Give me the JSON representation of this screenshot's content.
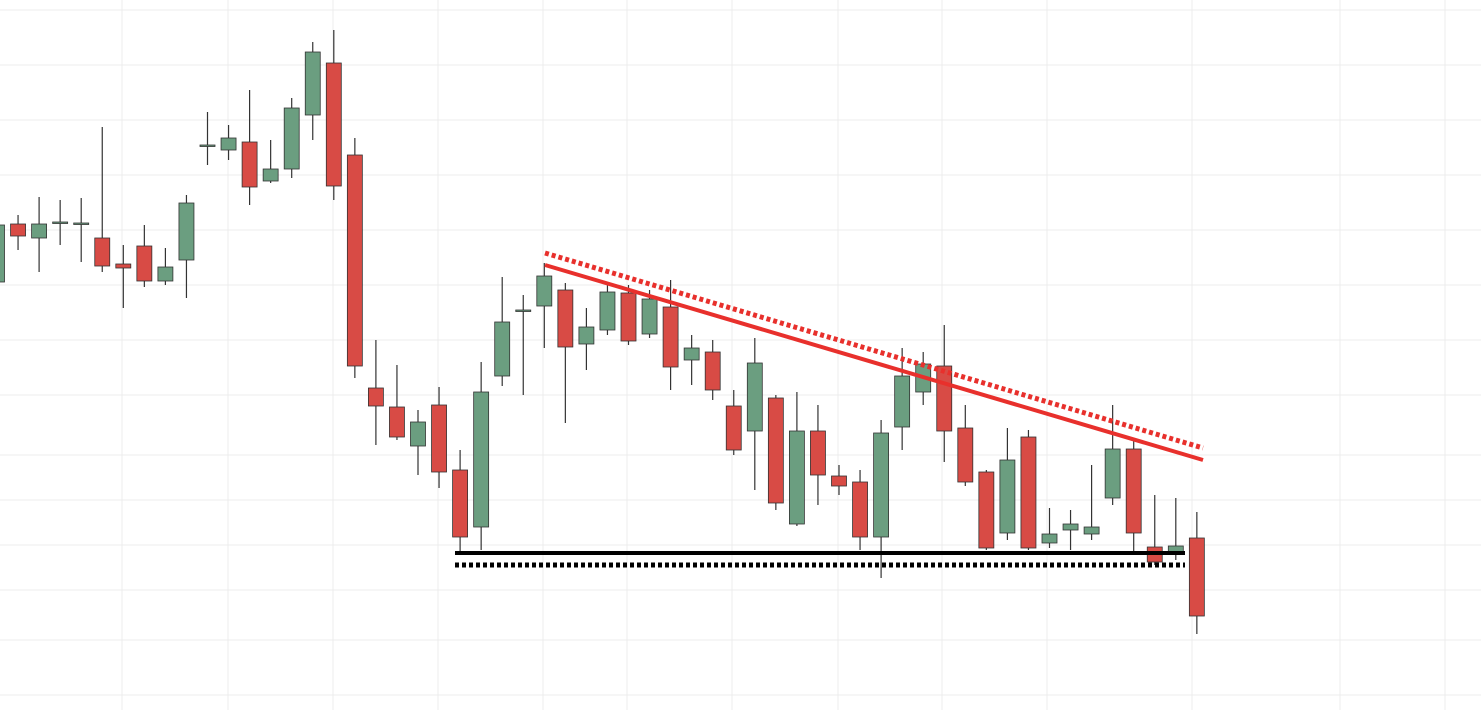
{
  "chart_data": {
    "type": "candlestick",
    "ylim": [
      0,
      710
    ],
    "up_color": "#6b9e80",
    "down_color": "#d84b45",
    "open": [
      428,
      486,
      472,
      488,
      487,
      472,
      446,
      464,
      429,
      450,
      565,
      560,
      568,
      529,
      541,
      595,
      647,
      555,
      322,
      303,
      264,
      305,
      240,
      183,
      334,
      400,
      404,
      420,
      366,
      380,
      417,
      376,
      403,
      350,
      358,
      304,
      279,
      312,
      186,
      279,
      234,
      228,
      173,
      283,
      318,
      344,
      282,
      238,
      177,
      273,
      167,
      180,
      176,
      212,
      261,
      163,
      158,
      172
    ],
    "high": [
      495,
      495,
      513,
      510,
      512,
      583,
      465,
      485,
      462,
      515,
      598,
      585,
      620,
      570,
      612,
      668,
      680,
      572,
      370,
      345,
      300,
      323,
      260,
      348,
      433,
      415,
      447,
      427,
      402,
      425,
      425,
      420,
      430,
      375,
      370,
      320,
      372,
      315,
      318,
      305,
      245,
      240,
      290,
      362,
      358,
      385,
      305,
      240,
      282,
      280,
      202,
      200,
      245,
      305,
      270,
      215,
      212,
      198
    ],
    "low": [
      425,
      460,
      438,
      465,
      448,
      438,
      402,
      423,
      425,
      412,
      545,
      550,
      505,
      527,
      532,
      570,
      510,
      332,
      265,
      270,
      235,
      222,
      155,
      160,
      324,
      315,
      362,
      287,
      340,
      375,
      365,
      372,
      320,
      325,
      310,
      255,
      220,
      200,
      184,
      205,
      215,
      160,
      132,
      260,
      305,
      248,
      224,
      160,
      170,
      160,
      162,
      160,
      170,
      205,
      158,
      145,
      150,
      76
    ],
    "close": [
      485,
      474,
      486,
      488,
      487,
      444,
      442,
      429,
      443,
      507,
      565,
      572,
      523,
      541,
      602,
      658,
      524,
      344,
      304,
      273,
      288,
      238,
      173,
      318,
      388,
      400,
      434,
      363,
      383,
      418,
      369,
      411,
      343,
      362,
      320,
      260,
      347,
      207,
      279,
      235,
      224,
      173,
      277,
      334,
      346,
      279,
      228,
      162,
      250,
      162,
      176,
      186,
      183,
      261,
      177,
      148,
      164,
      94
    ]
  }
}
